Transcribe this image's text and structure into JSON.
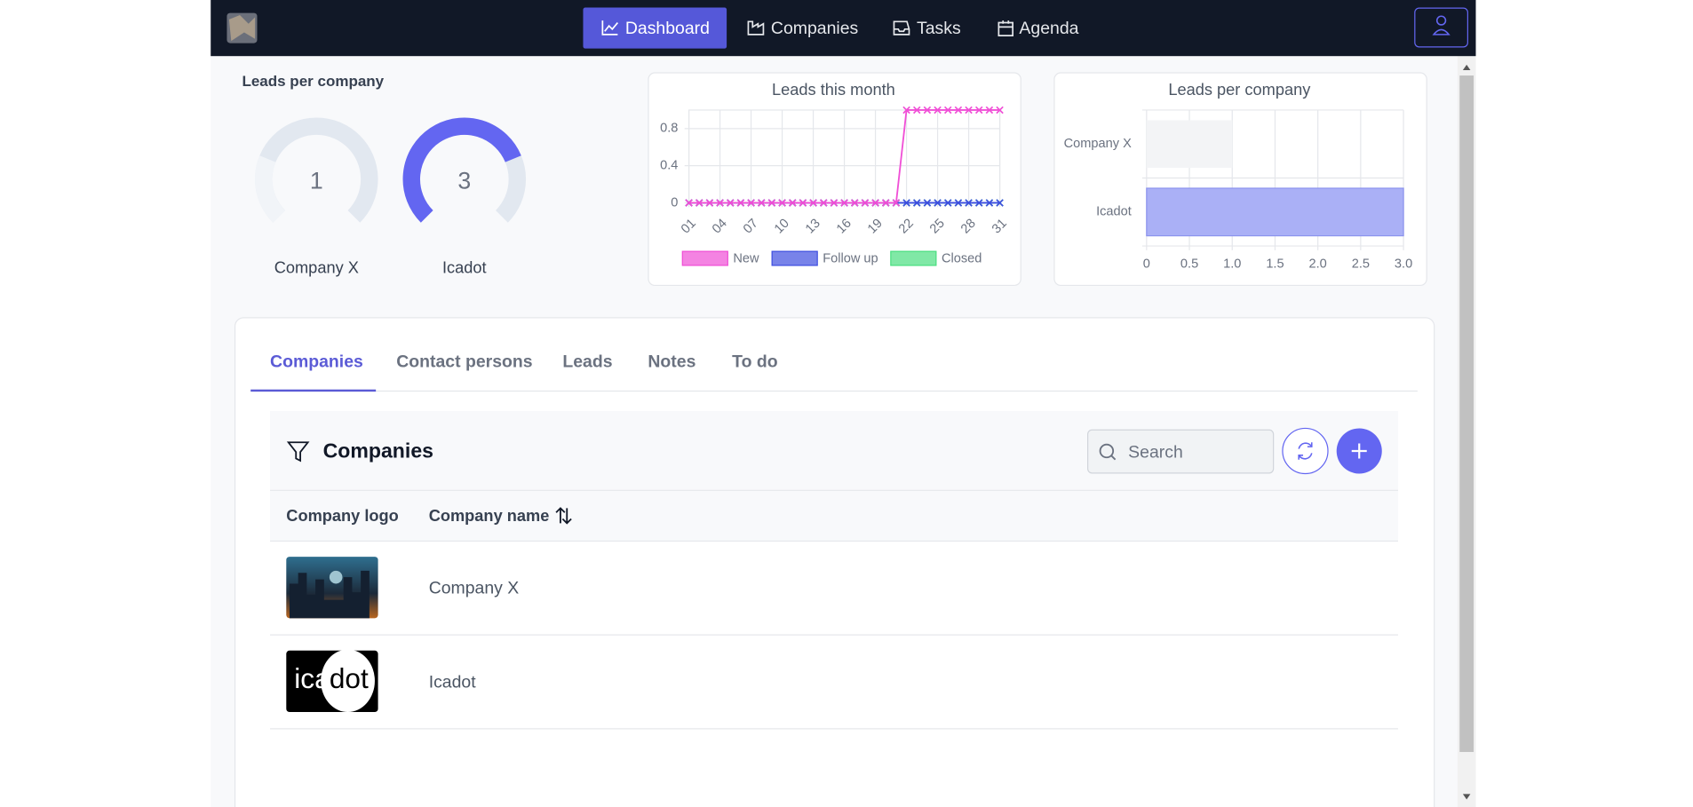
{
  "nav": {
    "links": [
      "Dashboard",
      "Companies",
      "Tasks",
      "Agenda"
    ],
    "active": 0
  },
  "gauges": {
    "title": "Leads per company",
    "track_color": "#e2e8f0",
    "items": [
      {
        "label": "Company X",
        "value": 1,
        "color": "#f1f4f8"
      },
      {
        "label": "Icadot",
        "value": 3,
        "color": "#6366f1"
      }
    ]
  },
  "line_chart": {
    "type": "line",
    "title": "Leads this month",
    "categories": [
      "01",
      null,
      null,
      "04",
      null,
      null,
      "07",
      null,
      null,
      "10",
      null,
      null,
      "13",
      null,
      null,
      "16",
      null,
      null,
      "19",
      null,
      null,
      "22",
      null,
      null,
      "25",
      null,
      null,
      "28",
      null,
      null,
      "31"
    ],
    "ylim": [
      0,
      1
    ],
    "yticks": [
      0,
      0.4,
      0.8
    ],
    "grid": true,
    "series": [
      {
        "name": "New",
        "color": "#f04fd6",
        "values": [
          0,
          0,
          0,
          0,
          0,
          0,
          0,
          0,
          0,
          0,
          0,
          0,
          0,
          0,
          0,
          0,
          0,
          0,
          0,
          0,
          0,
          1,
          1,
          1,
          1,
          1,
          1,
          1,
          1,
          1,
          1
        ]
      },
      {
        "name": "Follow up",
        "color": "#3f4fe0",
        "values": [
          0,
          0,
          0,
          0,
          0,
          0,
          0,
          0,
          0,
          0,
          0,
          0,
          0,
          0,
          0,
          0,
          0,
          0,
          0,
          0,
          0,
          0,
          0,
          0,
          0,
          0,
          0,
          0,
          0,
          0,
          0
        ]
      },
      {
        "name": "Closed",
        "color": "#4ade80",
        "values": [
          0,
          0,
          0,
          0,
          0,
          0,
          0,
          0,
          0,
          0,
          0,
          0,
          0,
          0,
          0,
          0,
          0,
          0,
          0,
          0,
          0,
          0,
          0,
          0,
          0,
          0,
          0,
          0,
          0,
          0,
          0
        ]
      }
    ]
  },
  "bar_chart": {
    "type": "bar",
    "orientation": "horizontal",
    "title": "Leads per company",
    "categories": [
      "Company X",
      "Icadot"
    ],
    "values": [
      1,
      3
    ],
    "colors": [
      "#f3f4f6",
      "#aab0f6"
    ],
    "xlim": [
      0,
      3
    ],
    "xticks": [
      0,
      0.5,
      {
        "value": 1,
        "label": "1.0"
      },
      1.5,
      {
        "value": 2,
        "label": "2.0"
      },
      2.5,
      {
        "value": 3,
        "label": "3.0"
      }
    ],
    "grid": true
  },
  "tabs": {
    "items": [
      "Companies",
      "Contact persons",
      "Leads",
      "Notes",
      "To do"
    ],
    "active": 0
  },
  "table": {
    "title": "Companies",
    "search_placeholder": "Search",
    "columns": [
      "Company logo",
      "Company name"
    ],
    "rows": [
      {
        "name": "Company X"
      },
      {
        "name": "Icadot",
        "logo_text": [
          "ica",
          "dot"
        ]
      }
    ]
  }
}
